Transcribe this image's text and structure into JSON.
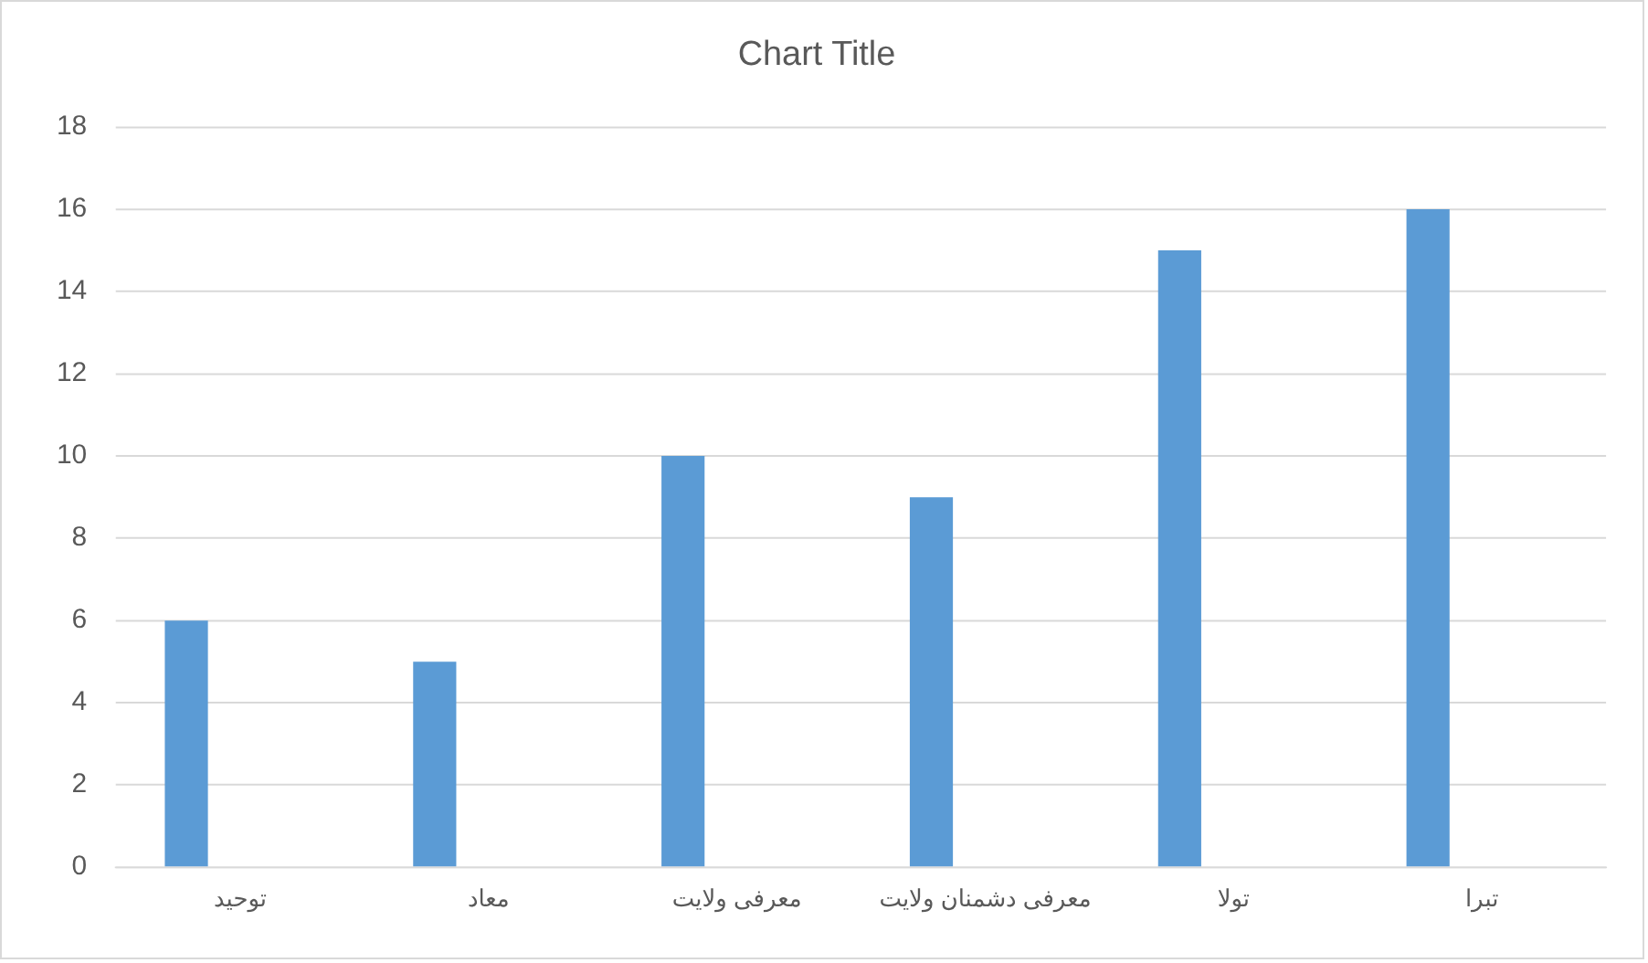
{
  "chart_data": {
    "type": "bar",
    "title": "Chart Title",
    "categories": [
      "توحید",
      "معاد",
      "معرفی ولایت",
      "معرفی دشمنان ولایت",
      "تولا",
      "تبرا"
    ],
    "values": [
      6,
      5,
      10,
      9,
      15,
      16
    ],
    "color": "#5b9bd5",
    "ylim": [
      0,
      18
    ],
    "yticks": [
      0,
      2,
      4,
      6,
      8,
      10,
      12,
      14,
      16,
      18
    ],
    "grid": "y",
    "legend": false
  }
}
